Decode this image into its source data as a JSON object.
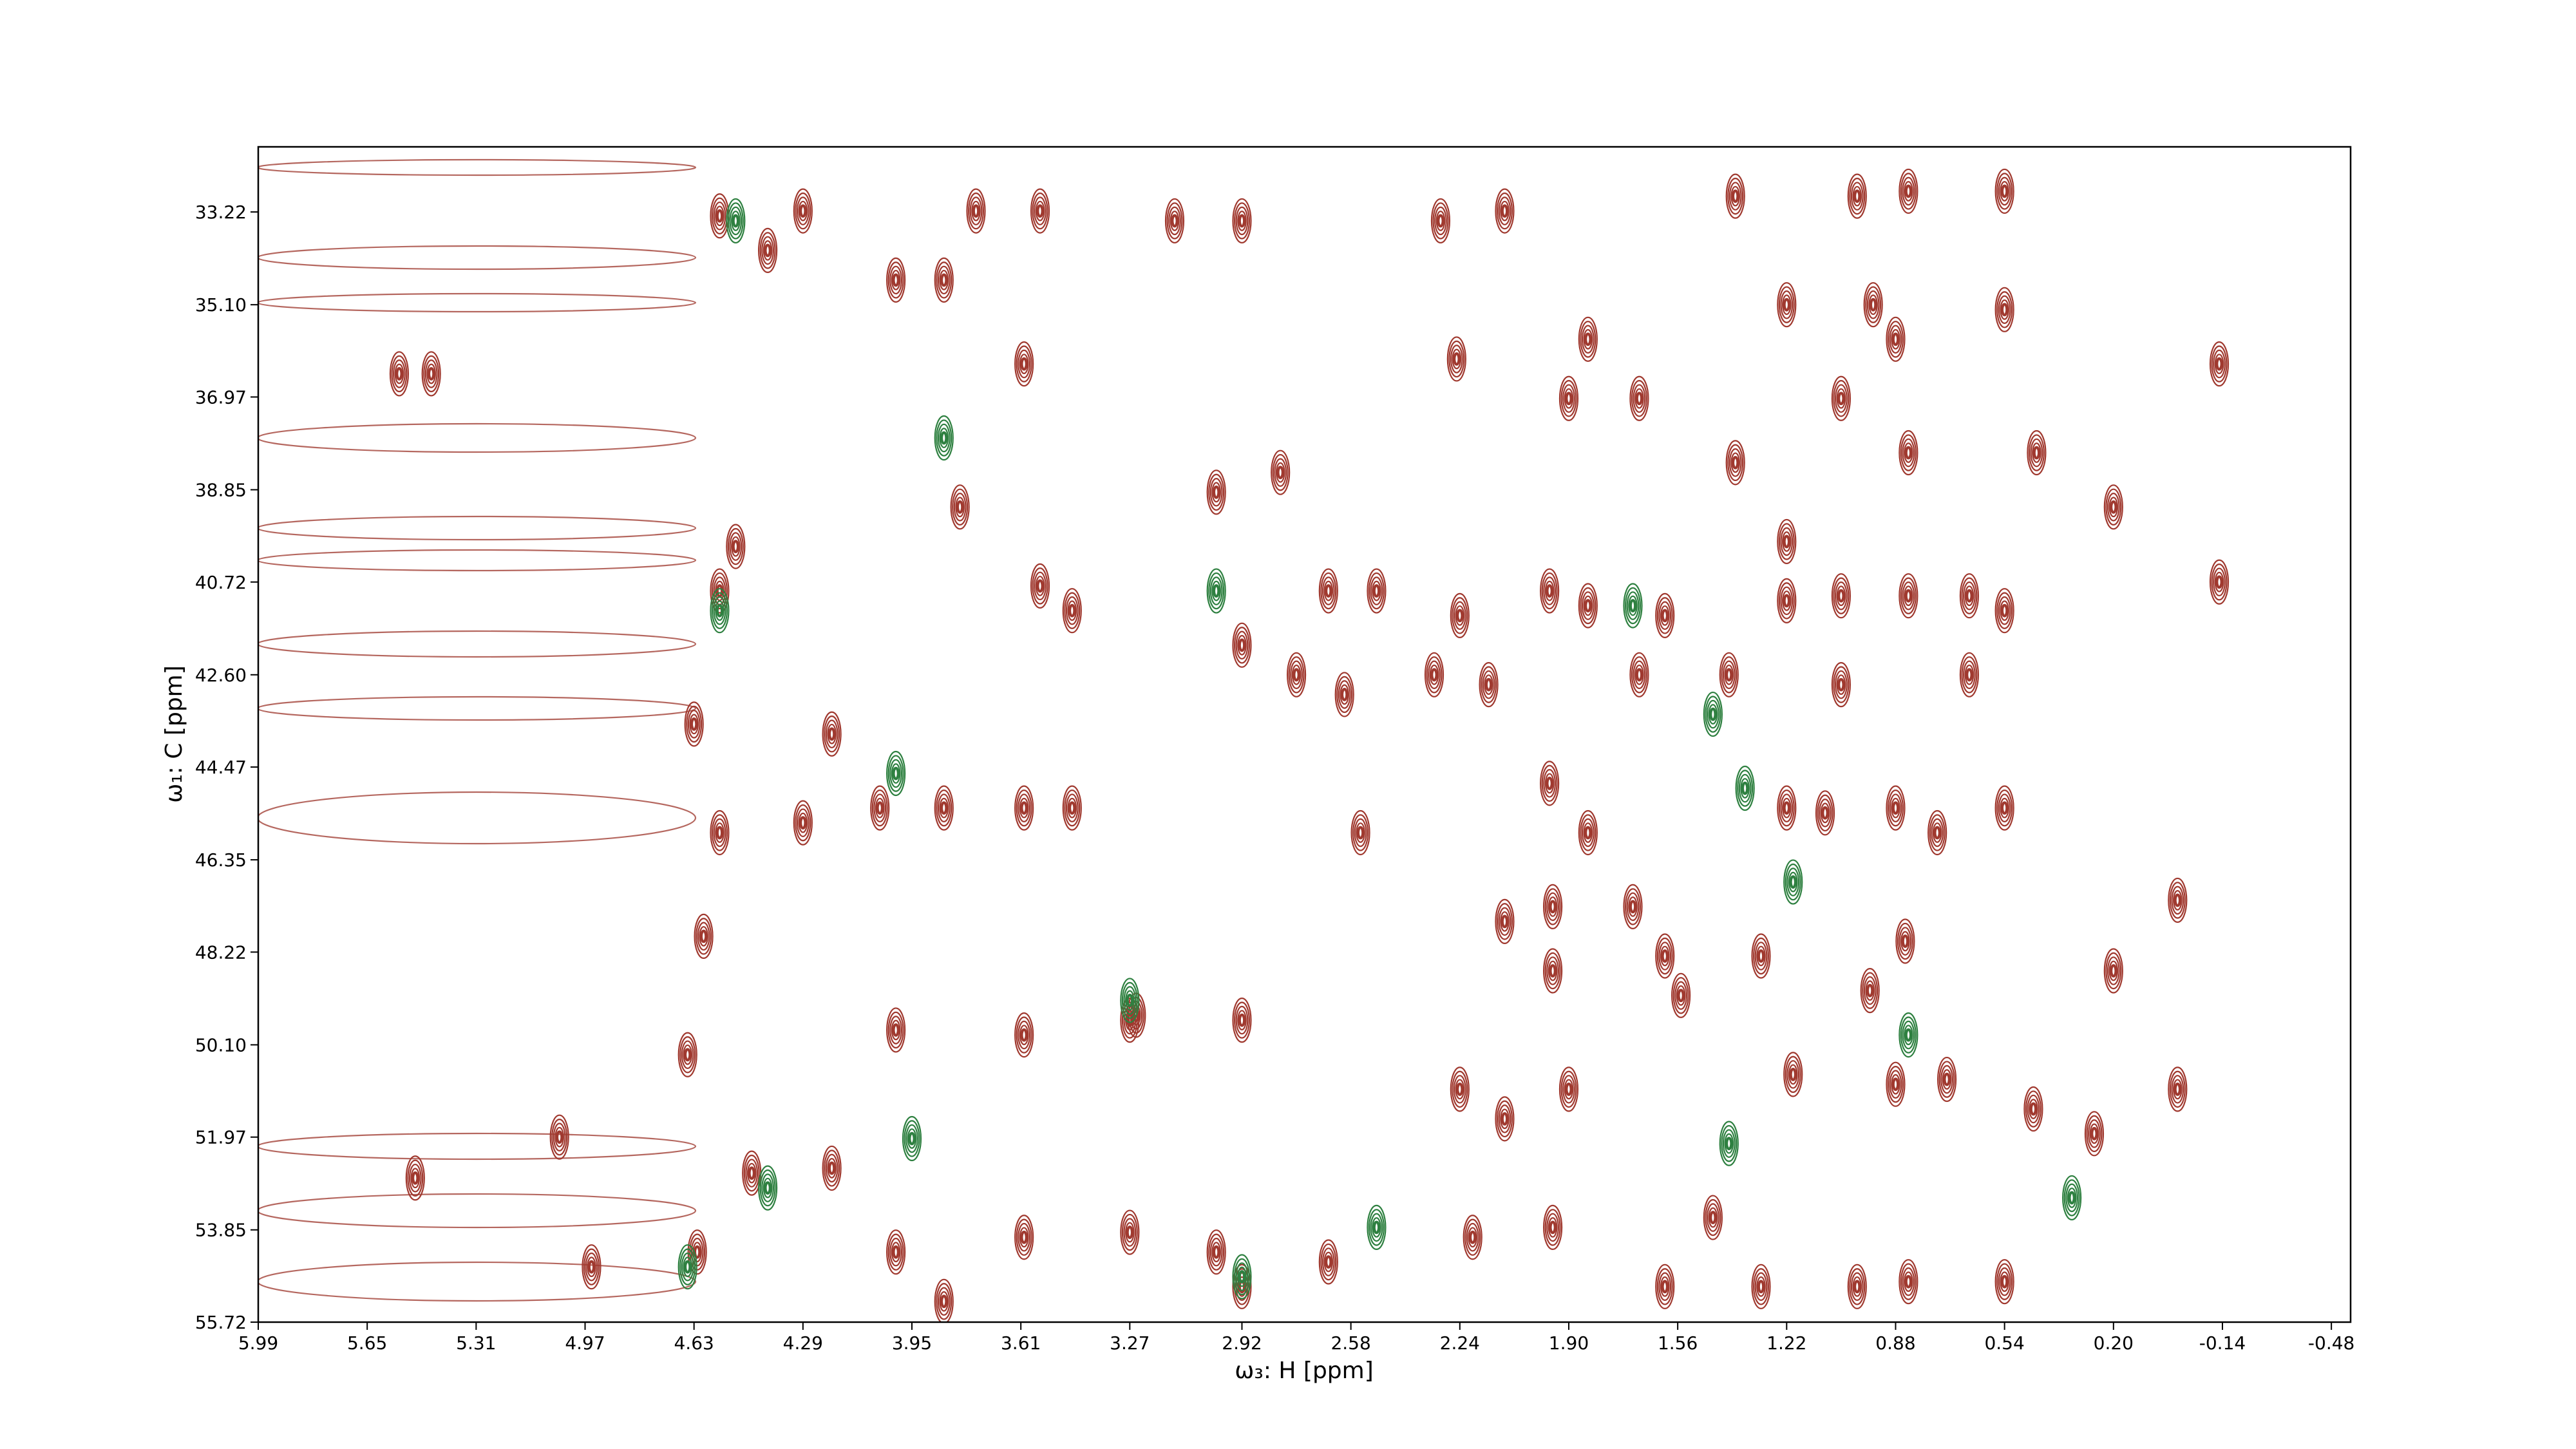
{
  "chart_data": {
    "type": "contour",
    "xlabel": "ω₃: H [ppm]",
    "ylabel": "ω₁: C [ppm]",
    "xlim": [
      5.99,
      -0.54
    ],
    "ylim": [
      31.9,
      55.72
    ],
    "xticks": [
      5.99,
      5.65,
      5.31,
      4.97,
      4.63,
      4.29,
      3.95,
      3.61,
      3.27,
      2.92,
      2.58,
      2.24,
      {
        "value": 1.9,
        "label": "1.90"
      },
      1.56,
      1.22,
      0.88,
      0.54,
      {
        "value": 0.2,
        "label": "0.20"
      },
      -0.14,
      -0.48
    ],
    "yticks": [
      33.22,
      {
        "value": 35.1,
        "label": "35.10"
      },
      36.97,
      38.85,
      40.72,
      {
        "value": 42.6,
        "label": "42.60"
      },
      44.47,
      46.35,
      48.22,
      {
        "value": 50.1,
        "label": "50.10"
      },
      51.97,
      53.85,
      55.72
    ],
    "series": [
      {
        "color": "#a0392f",
        "x": [
          0.54,
          0.84,
          1.0,
          1.38,
          2.1,
          2.3,
          3.13,
          2.92,
          3.55,
          3.75,
          4.29,
          4.55,
          4.4,
          4.0,
          3.85,
          1.22,
          0.95,
          0.54,
          0.88,
          1.84,
          2.25,
          3.6,
          5.55,
          5.45,
          -0.13,
          1.68,
          1.9,
          1.05,
          0.44,
          0.84,
          1.38,
          3.8,
          2.8,
          3.0,
          0.2,
          1.22,
          4.5,
          4.55,
          3.55,
          3.45,
          2.65,
          2.5,
          2.24,
          1.96,
          1.84,
          1.6,
          1.22,
          1.05,
          0.84,
          0.65,
          0.54,
          -0.13,
          2.92,
          2.75,
          2.6,
          2.32,
          2.15,
          1.68,
          1.4,
          1.05,
          0.65,
          4.2,
          4.63,
          1.96,
          1.84,
          2.55,
          3.45,
          3.6,
          3.85,
          4.05,
          4.29,
          4.55,
          1.22,
          1.1,
          0.88,
          0.75,
          0.54,
          1.7,
          1.95,
          1.6,
          1.3,
          0.85,
          0.96,
          1.55,
          1.95,
          2.1,
          4.6,
          4.65,
          3.27,
          3.25,
          2.92,
          4.0,
          3.6,
          1.9,
          2.1,
          2.24,
          1.2,
          0.88,
          0.72,
          0.45,
          0.26,
          0.0,
          0.0,
          0.2,
          4.45,
          4.2,
          3.6,
          3.27,
          3.0,
          2.92,
          2.65,
          2.2,
          1.95,
          1.6,
          1.45,
          1.3,
          1.0,
          0.84,
          0.54,
          5.5,
          5.05,
          4.95,
          4.62,
          4.0,
          3.85
        ],
        "values": [
          32.8,
          32.8,
          32.9,
          32.9,
          33.2,
          33.4,
          33.4,
          33.4,
          33.2,
          33.2,
          33.2,
          33.3,
          34.0,
          34.6,
          34.6,
          35.1,
          35.1,
          35.2,
          35.8,
          35.8,
          36.2,
          36.3,
          36.5,
          36.5,
          36.3,
          37.0,
          37.0,
          37.0,
          38.1,
          38.1,
          38.3,
          39.2,
          38.5,
          38.9,
          39.2,
          39.9,
          40.0,
          40.9,
          40.8,
          41.3,
          40.9,
          40.9,
          41.4,
          40.9,
          41.2,
          41.4,
          41.1,
          41.0,
          41.0,
          41.0,
          41.3,
          40.72,
          42.0,
          42.6,
          43.0,
          42.6,
          42.8,
          42.6,
          42.6,
          42.8,
          42.6,
          43.8,
          43.6,
          44.8,
          45.8,
          45.8,
          45.3,
          45.3,
          45.3,
          45.3,
          45.6,
          45.8,
          45.3,
          45.4,
          45.3,
          45.8,
          45.3,
          47.3,
          47.3,
          48.3,
          48.3,
          48.0,
          49.0,
          49.1,
          48.6,
          47.6,
          47.9,
          50.3,
          49.6,
          49.5,
          49.6,
          49.8,
          49.9,
          51.0,
          51.6,
          51.0,
          50.7,
          50.9,
          50.8,
          51.4,
          51.9,
          51.0,
          47.17,
          48.6,
          52.7,
          52.6,
          54.0,
          53.9,
          54.3,
          55.0,
          54.5,
          54.0,
          53.8,
          55.0,
          53.6,
          55.0,
          55.0,
          54.9,
          54.9,
          52.8,
          51.97,
          54.6,
          54.3,
          54.3,
          55.3
        ]
      },
      {
        "color": "#2e8040",
        "x": [
          4.5,
          3.85,
          3.0,
          4.55,
          4.0,
          1.7,
          1.45,
          1.35,
          1.2,
          0.84,
          0.33,
          1.4,
          3.27,
          2.92,
          2.5,
          4.4,
          4.65,
          3.95
        ],
        "values": [
          33.4,
          37.8,
          40.9,
          41.3,
          44.6,
          41.2,
          43.4,
          44.9,
          46.8,
          49.9,
          53.2,
          52.1,
          49.2,
          54.8,
          53.8,
          53.0,
          54.6,
          52.0
        ]
      }
    ]
  }
}
